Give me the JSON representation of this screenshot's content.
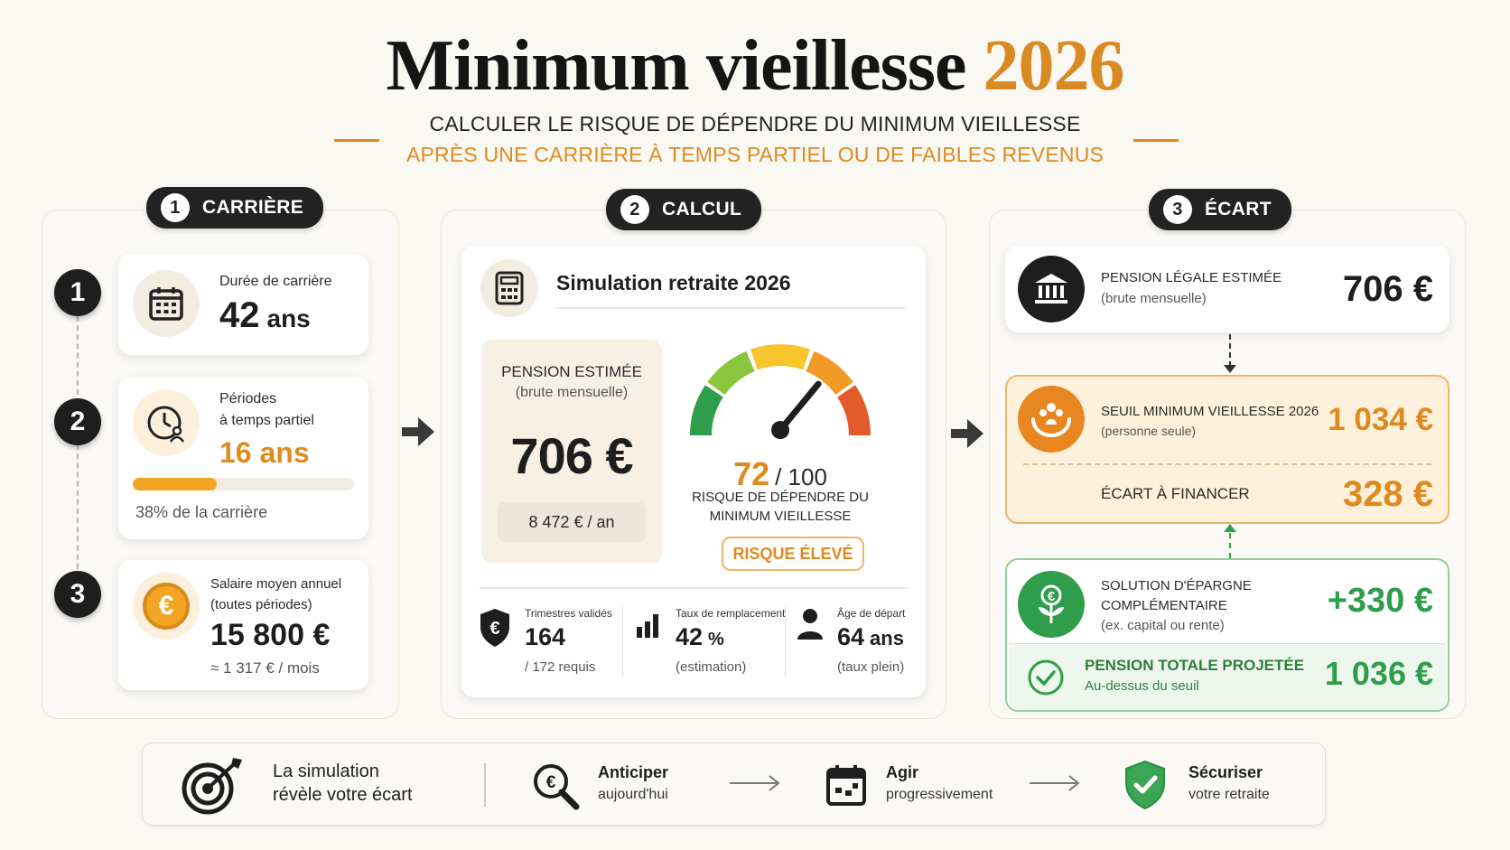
{
  "header": {
    "title_main": "Minimum vieillesse",
    "title_year": "2026",
    "subtitle_line1": "CALCULER LE RISQUE DE DÉPENDRE DU MINIMUM VIEILLESSE",
    "subtitle_line2": "APRÈS UNE CARRIÈRE À TEMPS PARTIEL OU DE FAIBLES REVENUS"
  },
  "sections": [
    {
      "number": "1",
      "label": "CARRIÈRE"
    },
    {
      "number": "2",
      "label": "CALCUL"
    },
    {
      "number": "3",
      "label": "ÉCART"
    }
  ],
  "career": {
    "steps": [
      "1",
      "2",
      "3"
    ],
    "duration": {
      "label": "Durée de carrière",
      "value": "42",
      "unit": "ans",
      "icon": "calendar-icon"
    },
    "part_time": {
      "label_line1": "Périodes",
      "label_line2": "à temps partiel",
      "value": "16 ans",
      "progress_fraction": 0.38,
      "caption": "38% de la carrière",
      "icon": "clock-person-icon"
    },
    "salary": {
      "label_line1": "Salaire moyen annuel",
      "label_line2": "(toutes périodes)",
      "value": "15 800 €",
      "monthly": "≈ 1 317 € / mois",
      "icon": "euro-coin-icon"
    }
  },
  "calculation": {
    "title": "Simulation retraite 2026",
    "icon": "calculator-icon",
    "pension_label": "PENSION ESTIMÉE",
    "pension_sub": "(brute mensuelle)",
    "pension_value": "706 €",
    "pension_year": "8 472 € / an",
    "gauge": {
      "score": "72",
      "max": "/ 100",
      "score_fraction": 0.72,
      "caption_line1": "RISQUE DE DÉPENDRE DU",
      "caption_line2": "MINIMUM VIEILLESSE",
      "badge": "RISQUE ÉLEVÉ"
    },
    "stats": [
      {
        "label": "Trimestres validés",
        "value": "164",
        "unit": "",
        "sub": "/ 172 requis",
        "icon": "shield-euro-icon"
      },
      {
        "label": "Taux de remplacement",
        "value": "42",
        "unit": "%",
        "sub": "(estimation)",
        "icon": "bar-chart-icon"
      },
      {
        "label": "Âge de départ",
        "value": "64",
        "unit": "ans",
        "sub": "(taux plein)",
        "icon": "person-icon"
      }
    ]
  },
  "gap": {
    "legal": {
      "label": "PENSION LÉGALE ESTIMÉE",
      "sub": "(brute mensuelle)",
      "value": "706 €",
      "icon": "bank-icon"
    },
    "threshold": {
      "label": "SEUIL MINIMUM VIEILLESSE 2026",
      "sub": "(personne seule)",
      "value": "1 034 €",
      "icon": "hands-people-icon"
    },
    "to_finance": {
      "label": "ÉCART À FINANCER",
      "value": "328 €"
    },
    "savings": {
      "label_line1": "SOLUTION D'ÉPARGNE",
      "label_line2": "COMPLÉMENTAIRE",
      "sub": "(ex. capital ou rente)",
      "value": "+330 €",
      "icon": "euro-plant-icon"
    },
    "total": {
      "label": "PENSION TOTALE PROJETÉE",
      "sub": "Au-dessus du seuil",
      "value": "1 036 €",
      "icon": "check-circle-icon"
    }
  },
  "footer": {
    "intro_line1": "La simulation",
    "intro_line2": "révèle votre écart",
    "steps": [
      {
        "title": "Anticiper",
        "sub": "aujourd'hui",
        "icon": "magnifier-euro-icon"
      },
      {
        "title": "Agir",
        "sub": "progressivement",
        "icon": "calendar-action-icon"
      },
      {
        "title": "Sécuriser",
        "sub": "votre retraite",
        "icon": "shield-check-icon"
      }
    ]
  },
  "colors": {
    "accent": "#e0891f",
    "dark": "#1e1e1e",
    "green": "#2f9e4b",
    "cream": "#fdf1dc"
  }
}
